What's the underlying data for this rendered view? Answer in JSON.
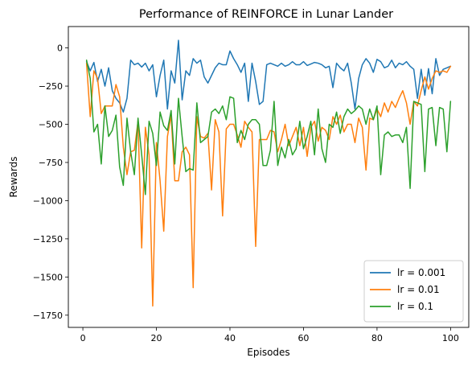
{
  "chart_data": {
    "type": "line",
    "title": "Performance of REINFORCE in Lunar Lander",
    "xlabel": "Episodes",
    "ylabel": "Rewards",
    "xlim": [
      -3.95,
      104.95
    ],
    "ylim": [
      -1830,
      140
    ],
    "xticks": [
      0,
      20,
      40,
      60,
      80,
      100
    ],
    "yticks": [
      0,
      -250,
      -500,
      -750,
      -1000,
      -1250,
      -1500,
      -1750
    ],
    "grid": false,
    "legend_position": "lower right",
    "series": [
      {
        "name": "lr = 0.001",
        "color": "#1f77b4",
        "x": [
          1,
          2,
          3,
          4,
          5,
          6,
          7,
          8,
          9,
          10,
          11,
          12,
          13,
          14,
          15,
          16,
          17,
          18,
          19,
          20,
          21,
          22,
          23,
          24,
          25,
          26,
          27,
          28,
          29,
          30,
          31,
          32,
          33,
          34,
          35,
          36,
          37,
          38,
          39,
          40,
          41,
          42,
          43,
          44,
          45,
          46,
          47,
          48,
          49,
          50,
          51,
          52,
          53,
          54,
          55,
          56,
          57,
          58,
          59,
          60,
          61,
          62,
          63,
          64,
          65,
          66,
          67,
          68,
          69,
          70,
          71,
          72,
          73,
          74,
          75,
          76,
          77,
          78,
          79,
          80,
          81,
          82,
          83,
          84,
          85,
          86,
          87,
          88,
          89,
          90,
          91,
          92,
          93,
          94,
          95,
          96,
          97,
          98,
          99,
          100
        ],
        "values": [
          -90,
          -150,
          -95,
          -220,
          -140,
          -250,
          -130,
          -280,
          -330,
          -360,
          -420,
          -330,
          -80,
          -110,
          -100,
          -125,
          -100,
          -150,
          -110,
          -320,
          -180,
          -80,
          -400,
          -150,
          -230,
          50,
          -340,
          -150,
          -180,
          -70,
          -100,
          -80,
          -190,
          -230,
          -180,
          -130,
          -100,
          -110,
          -110,
          -20,
          -70,
          -110,
          -160,
          -100,
          -350,
          -100,
          -220,
          -370,
          -350,
          -110,
          -100,
          -110,
          -120,
          -100,
          -120,
          -110,
          -90,
          -110,
          -110,
          -90,
          -115,
          -105,
          -95,
          -100,
          -110,
          -130,
          -120,
          -260,
          -100,
          -130,
          -150,
          -100,
          -230,
          -400,
          -200,
          -110,
          -70,
          -100,
          -160,
          -75,
          -90,
          -130,
          -120,
          -80,
          -130,
          -100,
          -110,
          -90,
          -120,
          -140,
          -330,
          -140,
          -310,
          -135,
          -300,
          -70,
          -180,
          -140,
          -130,
          -120
        ]
      },
      {
        "name": "lr = 0.01",
        "color": "#ff7f0e",
        "x": [
          1,
          2,
          3,
          4,
          5,
          6,
          7,
          8,
          9,
          10,
          11,
          12,
          13,
          14,
          15,
          16,
          17,
          18,
          19,
          20,
          21,
          22,
          23,
          24,
          25,
          26,
          27,
          28,
          29,
          30,
          31,
          32,
          33,
          34,
          35,
          36,
          37,
          38,
          39,
          40,
          41,
          42,
          43,
          44,
          45,
          46,
          47,
          48,
          49,
          50,
          51,
          52,
          53,
          54,
          55,
          56,
          57,
          58,
          59,
          60,
          61,
          62,
          63,
          64,
          65,
          66,
          67,
          68,
          69,
          70,
          71,
          72,
          73,
          74,
          75,
          76,
          77,
          78,
          79,
          80,
          81,
          82,
          83,
          84,
          85,
          86,
          87,
          88,
          89,
          90,
          91,
          92,
          93,
          94,
          95,
          96,
          97,
          98,
          99,
          100
        ],
        "values": [
          -100,
          -450,
          -150,
          -200,
          -430,
          -380,
          -380,
          -380,
          -240,
          -320,
          -650,
          -830,
          -680,
          -670,
          -480,
          -1310,
          -520,
          -700,
          -1690,
          -620,
          -870,
          -1200,
          -580,
          -440,
          -870,
          -870,
          -680,
          -650,
          -700,
          -1570,
          -450,
          -580,
          -590,
          -560,
          -930,
          -470,
          -550,
          -1100,
          -530,
          -500,
          -500,
          -570,
          -650,
          -480,
          -520,
          -550,
          -1300,
          -600,
          -600,
          -600,
          -540,
          -550,
          -680,
          -600,
          -500,
          -640,
          -580,
          -520,
          -640,
          -520,
          -710,
          -520,
          -480,
          -610,
          -520,
          -540,
          -600,
          -450,
          -500,
          -440,
          -550,
          -500,
          -500,
          -620,
          -460,
          -520,
          -800,
          -460,
          -470,
          -400,
          -450,
          -360,
          -420,
          -350,
          -390,
          -330,
          -280,
          -360,
          -500,
          -350,
          -380,
          -280,
          -190,
          -270,
          -200,
          -150,
          -160,
          -150,
          -160,
          -120
        ]
      },
      {
        "name": "lr = 0.1",
        "color": "#2ca02c",
        "x": [
          1,
          2,
          3,
          4,
          5,
          6,
          7,
          8,
          9,
          10,
          11,
          12,
          13,
          14,
          15,
          16,
          17,
          18,
          19,
          20,
          21,
          22,
          23,
          24,
          25,
          26,
          27,
          28,
          29,
          30,
          31,
          32,
          33,
          34,
          35,
          36,
          37,
          38,
          39,
          40,
          41,
          42,
          43,
          44,
          45,
          46,
          47,
          48,
          49,
          50,
          51,
          52,
          53,
          54,
          55,
          56,
          57,
          58,
          59,
          60,
          61,
          62,
          63,
          64,
          65,
          66,
          67,
          68,
          69,
          70,
          71,
          72,
          73,
          74,
          75,
          76,
          77,
          78,
          79,
          80,
          81,
          82,
          83,
          84,
          85,
          86,
          87,
          88,
          89,
          90,
          91,
          92,
          93,
          94,
          95,
          96,
          97,
          98,
          99,
          100
        ],
        "values": [
          -80,
          -200,
          -550,
          -500,
          -760,
          -380,
          -580,
          -540,
          -440,
          -780,
          -900,
          -460,
          -680,
          -830,
          -460,
          -700,
          -960,
          -480,
          -560,
          -770,
          -420,
          -510,
          -540,
          -410,
          -760,
          -330,
          -580,
          -810,
          -790,
          -800,
          -360,
          -620,
          -600,
          -580,
          -420,
          -400,
          -430,
          -380,
          -470,
          -320,
          -330,
          -620,
          -540,
          -600,
          -500,
          -470,
          -470,
          -500,
          -770,
          -770,
          -670,
          -350,
          -770,
          -650,
          -720,
          -600,
          -700,
          -660,
          -480,
          -660,
          -580,
          -480,
          -700,
          -400,
          -660,
          -750,
          -500,
          -520,
          -420,
          -560,
          -450,
          -400,
          -430,
          -410,
          -380,
          -400,
          -500,
          -400,
          -470,
          -380,
          -830,
          -570,
          -550,
          -580,
          -570,
          -570,
          -620,
          -520,
          -920,
          -350,
          -360,
          -370,
          -810,
          -400,
          -390,
          -640,
          -390,
          -400,
          -680,
          -350
        ]
      }
    ]
  }
}
